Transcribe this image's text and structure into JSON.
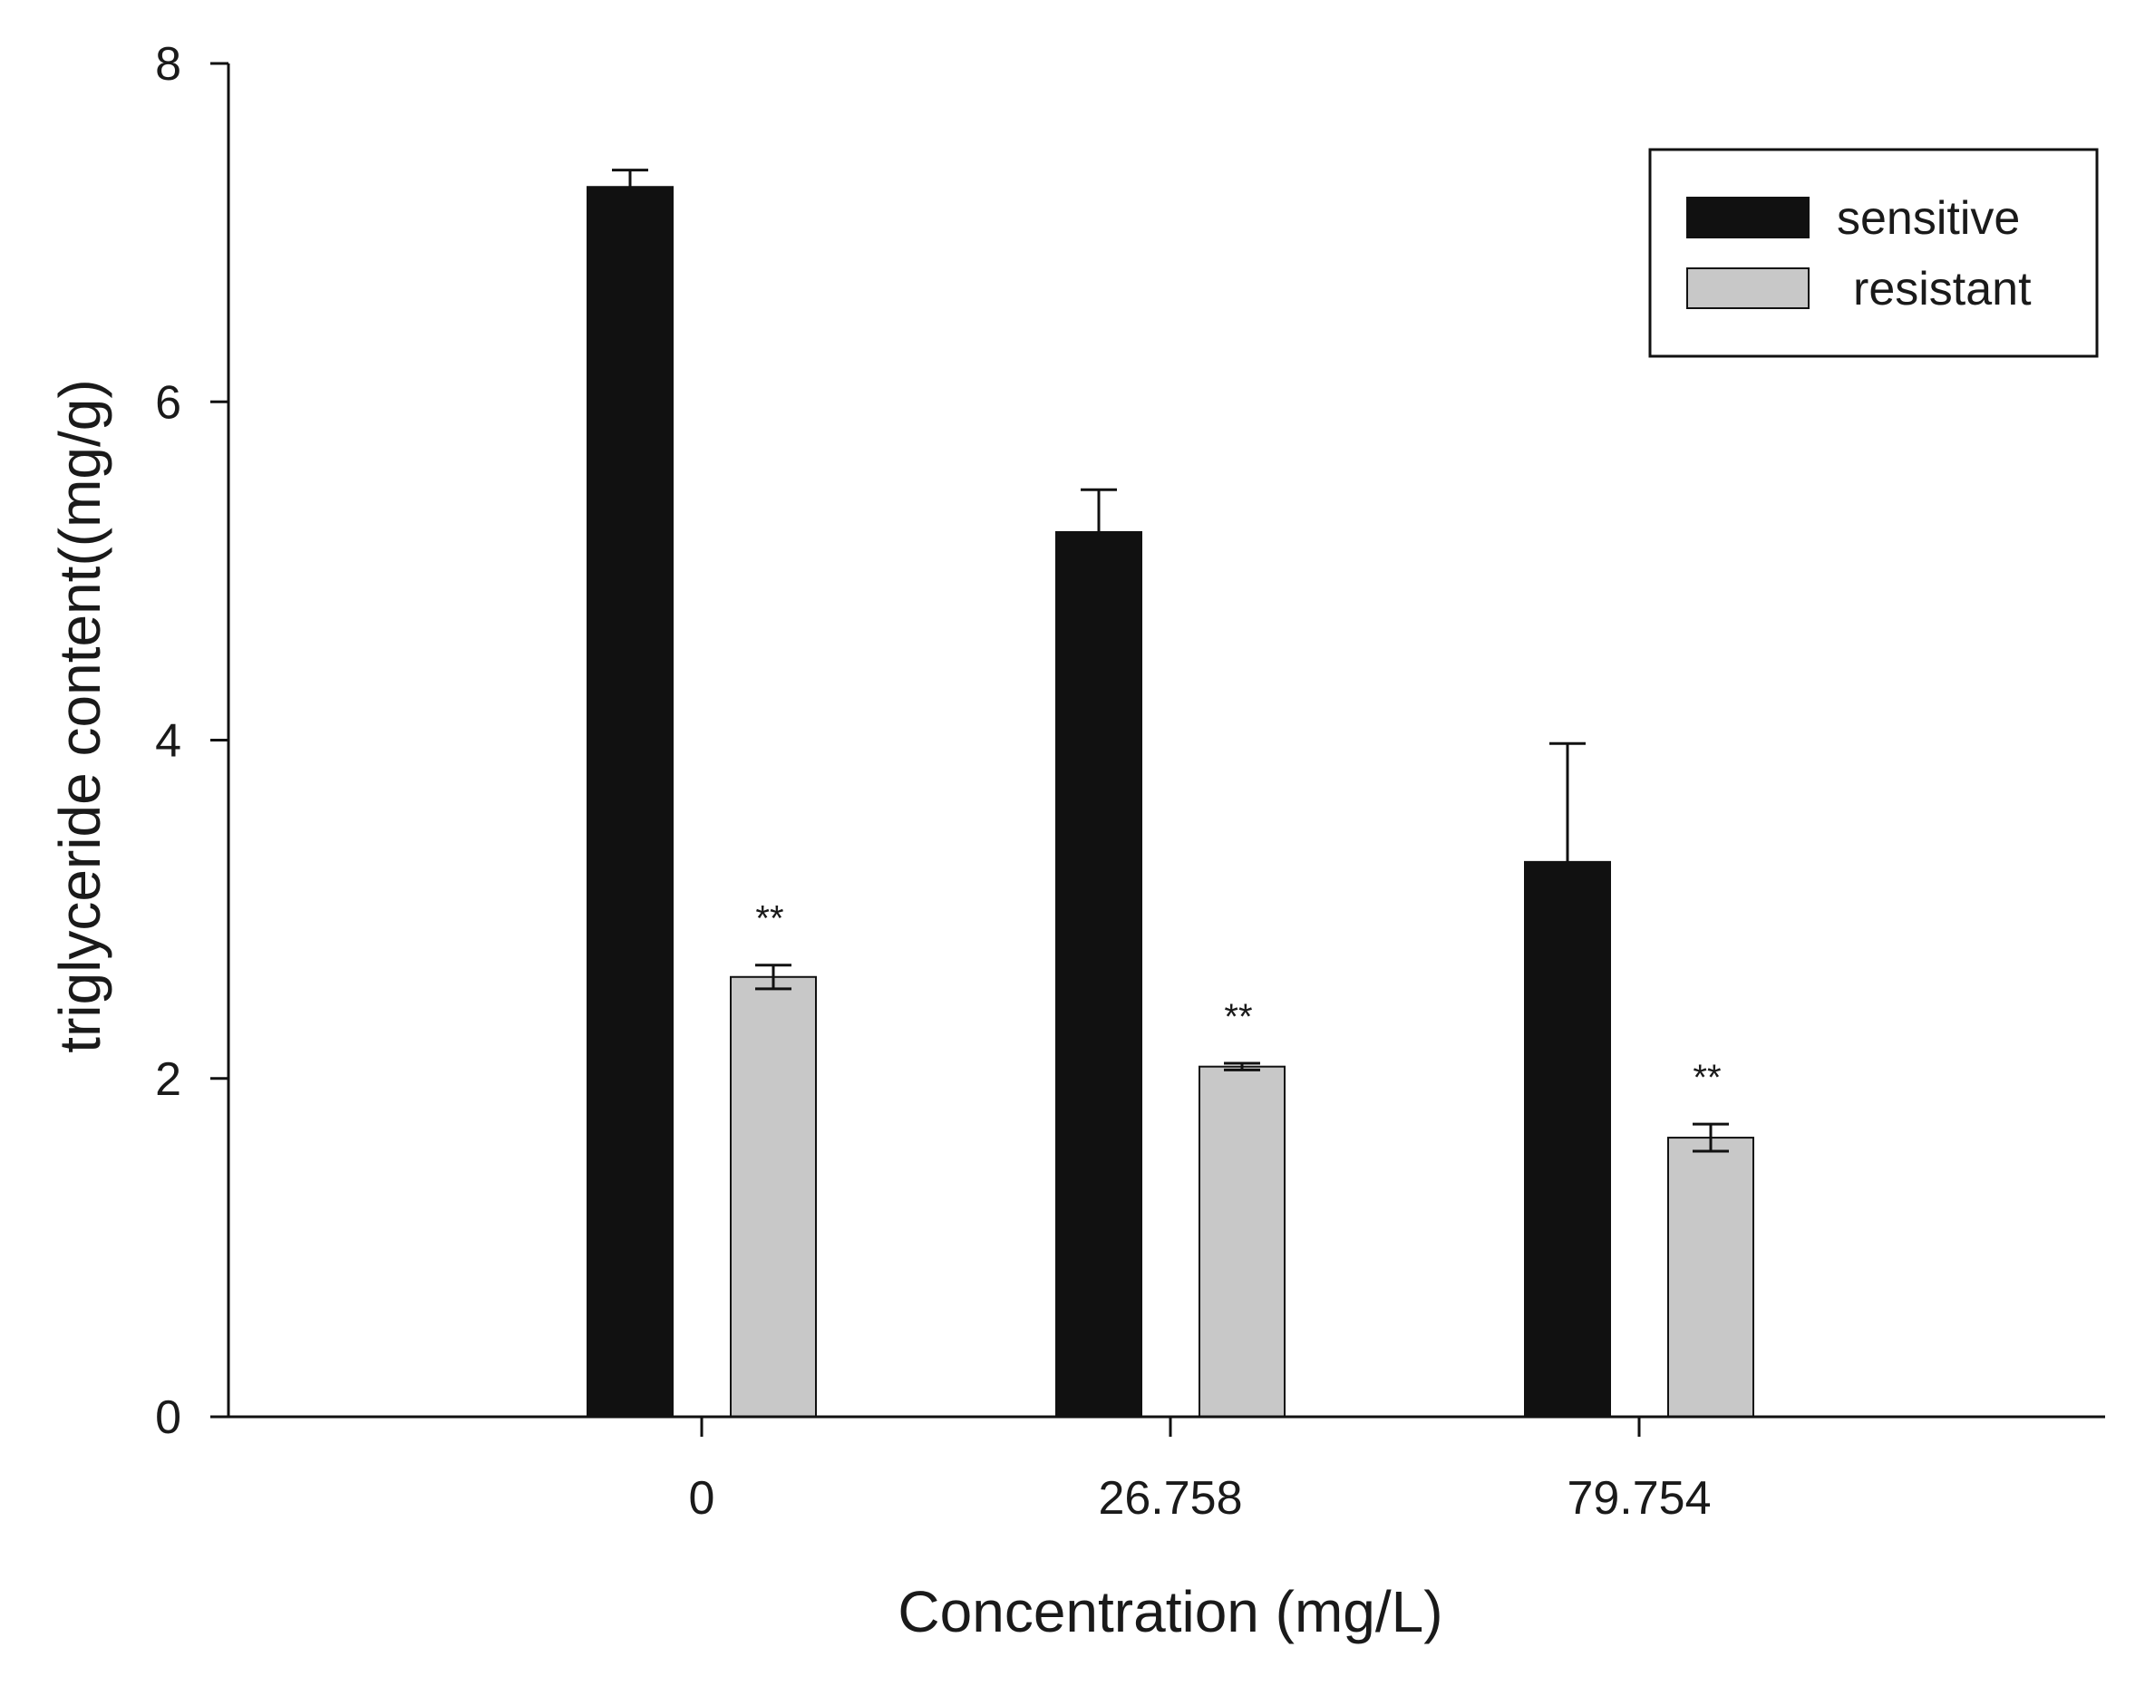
{
  "chart_data": {
    "type": "bar",
    "title": "",
    "xlabel": "Concentration (mg/L)",
    "ylabel": "triglyceride content((mg/g)",
    "categories": [
      "0",
      "26.758",
      "79.754"
    ],
    "ylim": [
      0,
      8
    ],
    "yticks": [
      "0",
      "2",
      "4",
      "6",
      "8"
    ],
    "grid": false,
    "legend_position": "top-right",
    "series": [
      {
        "name": "sensitive",
        "color": "#111111",
        "values": [
          7.27,
          5.23,
          3.28
        ],
        "errors": [
          0.1,
          0.25,
          0.7
        ],
        "annotations": [
          "",
          "",
          ""
        ]
      },
      {
        "name": "resistant",
        "color": "#c8c8c8",
        "values": [
          2.6,
          2.07,
          1.65
        ],
        "errors": [
          0.07,
          0.02,
          0.08
        ],
        "annotations": [
          "**",
          "**",
          "**"
        ]
      }
    ]
  }
}
